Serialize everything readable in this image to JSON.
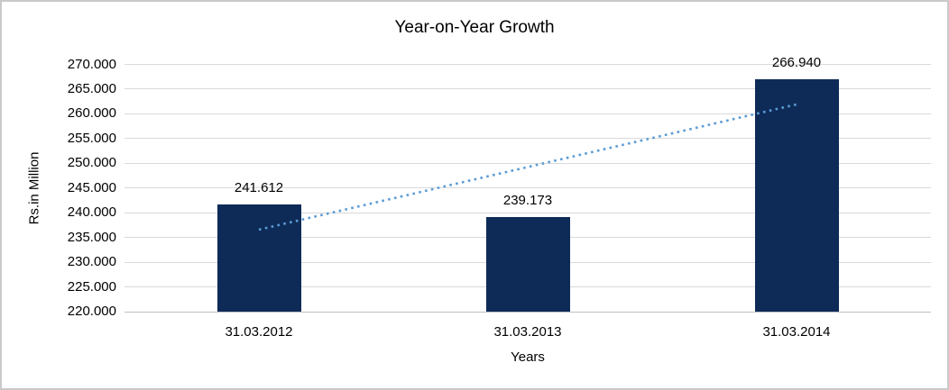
{
  "chart_data": {
    "type": "bar",
    "title": "Year-on-Year Growth",
    "xlabel": "Years",
    "ylabel": "Rs.in Million",
    "categories": [
      "31.03.2012",
      "31.03.2013",
      "31.03.2014"
    ],
    "values": [
      241.612,
      239.173,
      266.94
    ],
    "value_labels": [
      "241.612",
      "239.173",
      "266.940"
    ],
    "ylim": [
      220,
      270
    ],
    "ytick_step": 5,
    "ytick_labels": [
      "220.000",
      "225.000",
      "230.000",
      "235.000",
      "240.000",
      "245.000",
      "250.000",
      "255.000",
      "260.000",
      "265.000",
      "270.000"
    ],
    "grid": true,
    "legend": "none",
    "trendline": {
      "type": "linear",
      "style": "dotted",
      "start_category_index": 0,
      "end_category_index": 2,
      "start_value": 236.58,
      "end_value": 261.91
    },
    "colors": {
      "bar": "#0e2b58",
      "trendline": "#5b9bd5",
      "gridline": "#d9d9d9",
      "axis_line": "#bfbfbf",
      "text": "#000000",
      "frame_border": "#c9c9c9",
      "background": "#ffffff"
    }
  }
}
